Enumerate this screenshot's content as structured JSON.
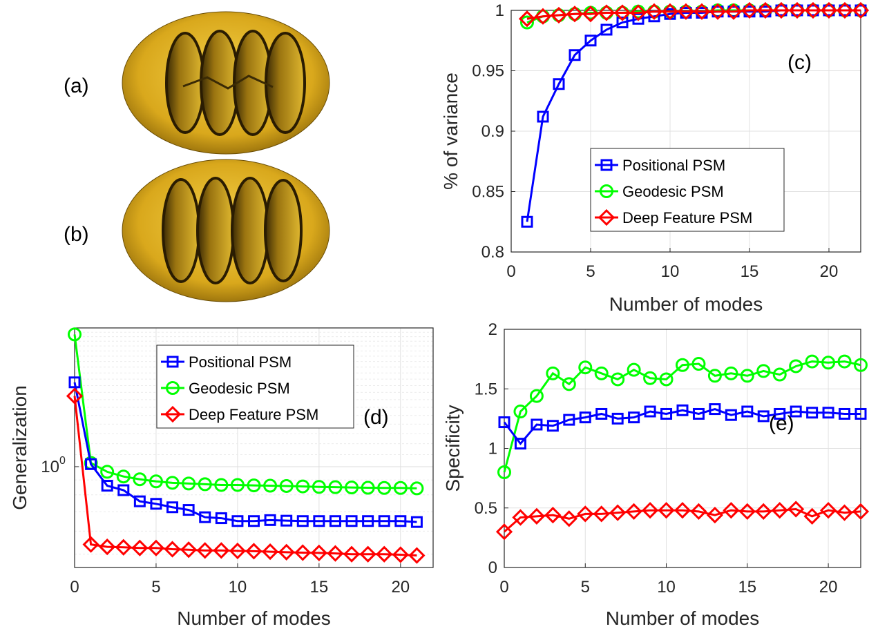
{
  "panel_labels": {
    "a": "(a)",
    "b": "(b)",
    "c": "(c)",
    "d": "(d)",
    "e": "(e)"
  },
  "series_names": [
    "Positional PSM",
    "Geodesic PSM",
    "Deep Feature PSM"
  ],
  "series_colors": [
    "#0000ff",
    "#00ff00",
    "#ff0000"
  ],
  "mesh_color": "#d9a81c",
  "chart_data": [
    {
      "id": "c",
      "type": "line",
      "xlabel": "Number of modes",
      "ylabel": "% of variance",
      "xlim": [
        0,
        22
      ],
      "ylim": [
        0.8,
        1
      ],
      "xticks": [
        0,
        5,
        10,
        15,
        20
      ],
      "yticks": [
        0.8,
        0.85,
        0.9,
        0.95,
        1
      ],
      "ytick_labels": [
        "0.8",
        "0.85",
        "0.9",
        "0.95",
        "1"
      ],
      "grid": true,
      "legend_position": "center",
      "x": [
        1,
        2,
        3,
        4,
        5,
        6,
        7,
        8,
        9,
        10,
        11,
        12,
        13,
        14,
        15,
        16,
        17,
        18,
        19,
        20,
        21,
        22
      ],
      "series": [
        {
          "name": "Positional PSM",
          "marker": "square",
          "values": [
            0.825,
            0.912,
            0.939,
            0.963,
            0.975,
            0.984,
            0.99,
            0.993,
            0.995,
            0.997,
            0.998,
            0.998,
            0.999,
            0.999,
            0.999,
            0.999,
            1.0,
            1.0,
            1.0,
            1.0,
            1.0,
            1.0
          ]
        },
        {
          "name": "Geodesic PSM",
          "marker": "circle",
          "values": [
            0.99,
            0.995,
            0.996,
            0.997,
            0.998,
            0.998,
            0.998,
            0.999,
            0.999,
            0.999,
            0.999,
            0.999,
            1.0,
            1.0,
            1.0,
            1.0,
            1.0,
            1.0,
            1.0,
            1.0,
            1.0,
            1.0
          ]
        },
        {
          "name": "Deep Feature PSM",
          "marker": "diamond",
          "values": [
            0.993,
            0.995,
            0.996,
            0.997,
            0.997,
            0.998,
            0.998,
            0.998,
            0.999,
            0.999,
            0.999,
            0.999,
            0.999,
            0.999,
            1.0,
            1.0,
            1.0,
            1.0,
            1.0,
            1.0,
            1.0,
            1.0
          ]
        }
      ]
    },
    {
      "id": "d",
      "type": "line",
      "xlabel": "Number of modes",
      "ylabel": "Generalization",
      "xlim": [
        0,
        22
      ],
      "ylim": [
        0.45,
        3
      ],
      "yscale": "log",
      "xticks": [
        0,
        5,
        10,
        15,
        20
      ],
      "yticks": [
        1
      ],
      "ytick_labels": [
        "10"
      ],
      "ytick_exponents": [
        "0"
      ],
      "grid": true,
      "legend_position": "top-center",
      "x": [
        0,
        1,
        2,
        3,
        4,
        5,
        6,
        7,
        8,
        9,
        10,
        11,
        12,
        13,
        14,
        15,
        16,
        17,
        18,
        19,
        20,
        21
      ],
      "series": [
        {
          "name": "Positional PSM",
          "marker": "square",
          "values": [
            1.95,
            1.02,
            0.86,
            0.83,
            0.76,
            0.745,
            0.725,
            0.71,
            0.67,
            0.665,
            0.65,
            0.65,
            0.655,
            0.652,
            0.65,
            0.65,
            0.65,
            0.65,
            0.65,
            0.65,
            0.65,
            0.645
          ]
        },
        {
          "name": "Geodesic PSM",
          "marker": "circle",
          "values": [
            2.85,
            1.03,
            0.96,
            0.925,
            0.905,
            0.89,
            0.88,
            0.875,
            0.87,
            0.865,
            0.865,
            0.862,
            0.86,
            0.858,
            0.855,
            0.852,
            0.85,
            0.848,
            0.846,
            0.845,
            0.845,
            0.842
          ]
        },
        {
          "name": "Deep Feature PSM",
          "marker": "diamond",
          "values": [
            1.75,
            0.54,
            0.53,
            0.528,
            0.525,
            0.525,
            0.52,
            0.518,
            0.515,
            0.515,
            0.513,
            0.512,
            0.51,
            0.508,
            0.506,
            0.505,
            0.503,
            0.5,
            0.5,
            0.5,
            0.498,
            0.495
          ]
        }
      ]
    },
    {
      "id": "e",
      "type": "line",
      "xlabel": "Number of modes",
      "ylabel": "Specificity",
      "xlim": [
        0,
        22
      ],
      "ylim": [
        0,
        2
      ],
      "xticks": [
        0,
        5,
        10,
        15,
        20
      ],
      "yticks": [
        0,
        0.5,
        1,
        1.5,
        2
      ],
      "ytick_labels": [
        "0",
        "0.5",
        "1",
        "1.5",
        "2"
      ],
      "grid": true,
      "x": [
        0,
        1,
        2,
        3,
        4,
        5,
        6,
        7,
        8,
        9,
        10,
        11,
        12,
        13,
        14,
        15,
        16,
        17,
        18,
        19,
        20,
        21,
        22
      ],
      "series": [
        {
          "name": "Positional PSM",
          "marker": "square",
          "values": [
            1.22,
            1.04,
            1.2,
            1.19,
            1.24,
            1.26,
            1.29,
            1.25,
            1.26,
            1.31,
            1.29,
            1.32,
            1.29,
            1.33,
            1.28,
            1.31,
            1.27,
            1.29,
            1.31,
            1.3,
            1.3,
            1.29,
            1.29
          ]
        },
        {
          "name": "Geodesic PSM",
          "marker": "circle",
          "values": [
            0.8,
            1.31,
            1.44,
            1.63,
            1.54,
            1.68,
            1.63,
            1.58,
            1.66,
            1.59,
            1.58,
            1.7,
            1.71,
            1.61,
            1.63,
            1.61,
            1.65,
            1.62,
            1.69,
            1.73,
            1.72,
            1.73,
            1.7
          ]
        },
        {
          "name": "Deep Feature PSM",
          "marker": "diamond",
          "values": [
            0.3,
            0.42,
            0.43,
            0.44,
            0.41,
            0.45,
            0.45,
            0.46,
            0.47,
            0.48,
            0.48,
            0.48,
            0.47,
            0.44,
            0.48,
            0.47,
            0.47,
            0.48,
            0.49,
            0.43,
            0.48,
            0.46,
            0.47
          ]
        }
      ]
    }
  ]
}
